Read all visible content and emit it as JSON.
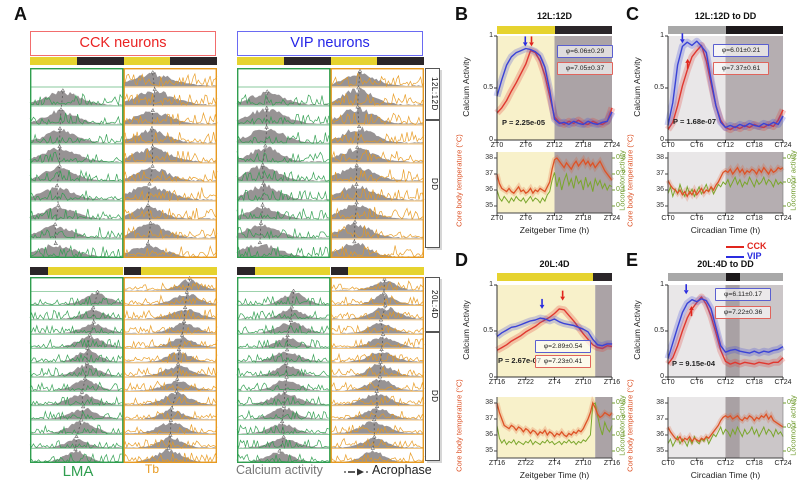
{
  "figure": {
    "panel_a": {
      "label": "A",
      "headers": {
        "cck": "CCK neurons",
        "vip": "VIP neurons"
      },
      "side_labels": {
        "top1": "12L:12D",
        "top2": "DD",
        "bottom1": "20L:4D",
        "bottom2": "DD"
      },
      "footer": {
        "lma": "LMA",
        "tb": "Tb",
        "calcium": "Calcium activity",
        "acrophase": "Acrophase"
      },
      "light_bars": {
        "top": [
          {
            "f": 0,
            "t": 0.25,
            "c": "#e6d32f"
          },
          {
            "f": 0.25,
            "t": 0.5,
            "c": "#2b2629"
          },
          {
            "f": 0.5,
            "t": 0.75,
            "c": "#e6d32f"
          },
          {
            "f": 0.75,
            "t": 1,
            "c": "#2b2629"
          }
        ],
        "bottom": [
          {
            "f": 0,
            "t": 0.096,
            "c": "#2b2629"
          },
          {
            "f": 0.096,
            "t": 0.5,
            "c": "#e6d32f"
          },
          {
            "f": 0.5,
            "t": 0.596,
            "c": "#2b2629"
          },
          {
            "f": 0.596,
            "t": 1,
            "c": "#e6d32f"
          }
        ]
      },
      "actograms": [
        {
          "name": "cck-12L12D-DD",
          "rows": 10,
          "peak_start": 0.34,
          "peak_end": 0.27,
          "sigma": 0.17,
          "seed": 7
        },
        {
          "name": "vip-12L12D-DD",
          "rows": 10,
          "peak_start": 0.32,
          "peak_end": 0.26,
          "sigma": 0.17,
          "seed": 13
        },
        {
          "name": "cck-20L4D-DD",
          "rows": 13,
          "peak_start": 0.73,
          "peak_end": 0.49,
          "sigma": 0.12,
          "seed": 21
        },
        {
          "name": "vip-20L4D-DD",
          "rows": 13,
          "peak_start": 0.6,
          "peak_end": 0.47,
          "sigma": 0.12,
          "seed": 29
        }
      ],
      "colors": {
        "green": "#2f9e4f",
        "orange": "#e89a20",
        "mound_gray": "#918d8e",
        "cck_red": "#ea2323",
        "vip_blue": "#2626e8"
      }
    },
    "legend": {
      "cck": "CCK",
      "vip": "VIP",
      "cck_color": "#e0251d",
      "vip_color": "#2a2cdf"
    }
  },
  "chart_data": [
    {
      "panel": "B",
      "type": "line",
      "title": "12L:12D",
      "xticks": [
        "ZT0",
        "ZT6",
        "ZT12",
        "ZT18",
        "ZT24"
      ],
      "xlabel": "Zeitgeber Time (h)",
      "calcium": {
        "ylabel": "Calcium Activity",
        "yticks": [
          {
            "v": 0,
            "label": "0"
          },
          {
            "v": 0.5,
            "label": "0.5"
          },
          {
            "v": 1,
            "label": "1"
          }
        ],
        "p_value": "P = 2.25e-05",
        "phi_vip": "φ=6.06±0.29",
        "phi_cck": "φ=7.05±0.37",
        "vip": [
          0.42,
          0.58,
          0.72,
          0.8,
          0.84,
          0.86,
          0.88,
          0.87,
          0.85,
          0.81,
          0.7,
          0.48,
          0.2,
          0.16,
          0.17,
          0.15,
          0.18,
          0.16,
          0.15,
          0.18,
          0.16,
          0.15,
          0.17,
          0.18,
          0.27
        ],
        "cck": [
          0.26,
          0.31,
          0.38,
          0.47,
          0.55,
          0.64,
          0.73,
          0.86,
          0.84,
          0.76,
          0.62,
          0.42,
          0.22,
          0.17,
          0.15,
          0.18,
          0.16,
          0.19,
          0.16,
          0.15,
          0.18,
          0.16,
          0.15,
          0.18,
          0.31
        ],
        "arrows": [
          {
            "series": "vip",
            "t": 5.9,
            "v": 0.9,
            "dir": "down"
          },
          {
            "series": "cck",
            "t": 7.2,
            "v": 0.9,
            "dir": "down"
          }
        ]
      },
      "physio": {
        "ylabel_left": "Core body temperature (°C)",
        "ylabel_right": "Locomotor activity",
        "yticks_left": [
          "35",
          "36",
          "37",
          "38"
        ],
        "yticks_right": [
          "0",
          "0.1",
          "0.2",
          "0.3"
        ],
        "loco_max": 0.3,
        "temp": [
          37.0,
          36.4,
          36.1,
          36.0,
          35.9,
          36.1,
          35.9,
          35.8,
          36.0,
          36.2,
          35.9,
          36.0,
          35.8,
          35.9,
          36.1,
          35.8,
          36.0,
          35.9,
          36.1,
          36.0,
          35.9,
          36.2,
          36.5,
          37.3,
          37.9,
          38.0,
          37.8,
          37.6,
          37.4,
          37.7,
          37.5,
          37.3,
          37.6,
          37.8,
          37.5,
          37.7,
          37.9,
          37.6,
          37.8,
          37.5,
          37.7,
          37.4,
          37.6,
          37.8,
          37.5,
          37.2,
          37.0,
          36.8,
          36.6
        ],
        "loco": [
          0.1,
          0.05,
          0.03,
          0.06,
          0.04,
          0.02,
          0.05,
          0.03,
          0.06,
          0.04,
          0.03,
          0.05,
          0.02,
          0.04,
          0.06,
          0.03,
          0.05,
          0.04,
          0.02,
          0.05,
          0.03,
          0.07,
          0.09,
          0.16,
          0.21,
          0.12,
          0.18,
          0.1,
          0.16,
          0.2,
          0.13,
          0.17,
          0.11,
          0.19,
          0.14,
          0.16,
          0.1,
          0.18,
          0.12,
          0.15,
          0.09,
          0.17,
          0.13,
          0.16,
          0.11,
          0.14,
          0.1,
          0.13,
          0.12
        ]
      },
      "light_bar": [
        {
          "f": 0,
          "t": 0.5,
          "c": "#e6d32f"
        },
        {
          "f": 0.5,
          "t": 1,
          "c": "#2b2629"
        }
      ],
      "bg": [
        {
          "f": 0,
          "t": 0.5,
          "c": "#f8f1ca"
        },
        {
          "f": 0.5,
          "t": 1,
          "c": "#aba3a6"
        }
      ]
    },
    {
      "panel": "C",
      "type": "line",
      "title": "12L:12D to DD",
      "xticks": [
        "CT0",
        "CT6",
        "CT12",
        "CT18",
        "CT24"
      ],
      "xlabel": "Circadian Time (h)",
      "calcium": {
        "ylabel": "Calcium Activity",
        "yticks": [
          {
            "v": 0,
            "label": "0"
          },
          {
            "v": 0.5,
            "label": "0.5"
          },
          {
            "v": 1,
            "label": "1"
          }
        ],
        "p_value": "P = 1.68e-07",
        "phi_vip": "φ=6.01±0.21",
        "phi_cck": "φ=7.37±0.61",
        "vip": [
          0.14,
          0.36,
          0.72,
          0.9,
          0.94,
          0.91,
          0.95,
          0.9,
          0.84,
          0.58,
          0.33,
          0.17,
          0.12,
          0.14,
          0.12,
          0.15,
          0.13,
          0.16,
          0.14,
          0.13,
          0.16,
          0.14,
          0.17,
          0.15,
          0.23
        ],
        "cck": [
          0.1,
          0.17,
          0.33,
          0.52,
          0.67,
          0.8,
          0.86,
          0.91,
          0.76,
          0.54,
          0.33,
          0.19,
          0.12,
          0.1,
          0.13,
          0.11,
          0.14,
          0.12,
          0.15,
          0.13,
          0.12,
          0.15,
          0.13,
          0.19,
          0.29
        ],
        "arrows": [
          {
            "series": "vip",
            "t": 3.0,
            "v": 0.93,
            "dir": "down"
          },
          {
            "series": "cck",
            "t": 4.1,
            "v": 0.78,
            "dir": "up"
          }
        ]
      },
      "physio": {
        "ylabel_left": "Core body temperature (°C)",
        "ylabel_right": "Locomotor activity",
        "yticks_left": [
          "35",
          "36",
          "37",
          "38"
        ],
        "yticks_right": [
          "0",
          "0.1",
          "0.2"
        ],
        "loco_max": 0.2,
        "temp": [
          36.6,
          36.3,
          36.1,
          36.0,
          35.8,
          36.0,
          35.7,
          35.9,
          35.6,
          35.9,
          35.7,
          36.0,
          35.7,
          35.9,
          36.1,
          35.8,
          36.0,
          35.9,
          36.2,
          36.0,
          36.3,
          36.5,
          36.8,
          37.1,
          37.2,
          37.1,
          37.3,
          37.0,
          37.2,
          37.4,
          37.1,
          37.3,
          37.0,
          37.2,
          37.1,
          37.3,
          37.2,
          37.0,
          37.3,
          37.1,
          37.4,
          37.2,
          37.0,
          37.3,
          37.1,
          37.2,
          37.4,
          37.3,
          37.4
        ],
        "loco": [
          0.05,
          0.08,
          0.04,
          0.07,
          0.05,
          0.09,
          0.06,
          0.04,
          0.08,
          0.05,
          0.07,
          0.04,
          0.06,
          0.08,
          0.05,
          0.07,
          0.09,
          0.06,
          0.08,
          0.05,
          0.07,
          0.09,
          0.08,
          0.1,
          0.09,
          0.11,
          0.08,
          0.1,
          0.12,
          0.09,
          0.11,
          0.08,
          0.1,
          0.09,
          0.12,
          0.1,
          0.08,
          0.11,
          0.09,
          0.1,
          0.12,
          0.09,
          0.11,
          0.1,
          0.08,
          0.11,
          0.09,
          0.1,
          0.09
        ]
      },
      "light_bar": [
        {
          "f": 0,
          "t": 0.5,
          "c": "#a8a8a8"
        },
        {
          "f": 0.5,
          "t": 1,
          "c": "#1d191b"
        }
      ],
      "bg": [
        {
          "f": 0,
          "t": 0.5,
          "c": "#e9e7e8"
        },
        {
          "f": 0.5,
          "t": 1,
          "c": "#b5aeb1"
        }
      ]
    },
    {
      "panel": "D",
      "type": "line",
      "title": "20L:4D",
      "xticks": [
        "ZT16",
        "ZT22",
        "ZT4",
        "ZT10",
        "ZT16"
      ],
      "xlabel": "Zeitgeber Time (h)",
      "calcium": {
        "ylabel": "Calcium Activity",
        "yticks": [
          {
            "v": 0,
            "label": "0"
          },
          {
            "v": 0.5,
            "label": "0.5"
          },
          {
            "v": 1,
            "label": "1"
          }
        ],
        "p_value": "P = 2.67e-07",
        "phi_vip": "φ=2.89±0.54",
        "phi_cck": "φ=7.23±0.41",
        "vip": [
          0.44,
          0.48,
          0.51,
          0.54,
          0.55,
          0.57,
          0.59,
          0.61,
          0.62,
          0.64,
          0.63,
          0.61,
          0.63,
          0.6,
          0.58,
          0.57,
          0.56,
          0.54,
          0.52,
          0.49,
          0.41,
          0.35,
          0.34,
          0.36,
          0.36
        ],
        "cck": [
          0.29,
          0.32,
          0.35,
          0.39,
          0.42,
          0.45,
          0.49,
          0.52,
          0.55,
          0.59,
          0.62,
          0.65,
          0.69,
          0.74,
          0.73,
          0.67,
          0.61,
          0.54,
          0.47,
          0.41,
          0.35,
          0.32,
          0.31,
          0.34,
          0.33
        ],
        "arrows": [
          {
            "series": "vip",
            "t": 9.4,
            "v": 0.74,
            "dir": "down"
          },
          {
            "series": "cck",
            "t": 13.7,
            "v": 0.83,
            "dir": "down"
          }
        ]
      },
      "physio": {
        "ylabel_left": "Core body temperature (°C)",
        "ylabel_right": "Locomotor activity",
        "yticks_left": [
          "35",
          "36",
          "37",
          "38"
        ],
        "yticks_right": [
          "0",
          "0.1",
          "0.2",
          "0.3"
        ],
        "loco_max": 0.3,
        "temp": [
          38.0,
          37.4,
          37.0,
          36.6,
          36.5,
          36.4,
          36.6,
          36.5,
          36.3,
          36.5,
          36.4,
          36.2,
          36.4,
          36.3,
          36.1,
          36.3,
          36.2,
          36.0,
          36.2,
          36.1,
          36.3,
          36.0,
          36.2,
          36.1,
          35.9,
          36.1,
          36.0,
          36.2,
          36.0,
          35.9,
          36.1,
          36.0,
          36.2,
          36.1,
          36.3,
          36.2,
          36.4,
          36.7,
          37.0,
          37.4,
          38.0,
          37.7,
          37.3,
          37.1,
          37.2,
          37.4,
          37.3,
          37.2,
          37.4
        ],
        "loco": [
          0.16,
          0.08,
          0.05,
          0.07,
          0.04,
          0.06,
          0.05,
          0.07,
          0.04,
          0.06,
          0.05,
          0.04,
          0.06,
          0.05,
          0.07,
          0.04,
          0.06,
          0.05,
          0.04,
          0.06,
          0.05,
          0.07,
          0.05,
          0.06,
          0.04,
          0.05,
          0.06,
          0.04,
          0.06,
          0.05,
          0.07,
          0.05,
          0.06,
          0.04,
          0.06,
          0.05,
          0.07,
          0.06,
          0.08,
          0.1,
          0.29,
          0.3,
          0.22,
          0.15,
          0.1,
          0.18,
          0.14,
          0.12,
          0.16
        ]
      },
      "light_bar": [
        {
          "f": 0,
          "t": 0.833,
          "c": "#e6d32f"
        },
        {
          "f": 0.833,
          "t": 1,
          "c": "#2b2629"
        }
      ],
      "bg": [
        {
          "f": 0,
          "t": 0.854,
          "c": "#f8f1ca"
        },
        {
          "f": 0.854,
          "t": 1,
          "c": "#aba3a6"
        }
      ]
    },
    {
      "panel": "E",
      "type": "line",
      "title": "20L:4D to DD",
      "xticks": [
        "CT0",
        "CT6",
        "CT12",
        "CT18",
        "CT24"
      ],
      "xlabel": "Circadian Time (h)",
      "calcium": {
        "ylabel": "Calcium Activity",
        "yticks": [
          {
            "v": 0,
            "label": "0"
          },
          {
            "v": 0.5,
            "label": "0.5"
          },
          {
            "v": 1,
            "label": "1"
          }
        ],
        "p_value": "P = 9.15e-04",
        "phi_vip": "φ=6.11±0.17",
        "phi_cck": "φ=7.22±0.36",
        "vip": [
          0.2,
          0.37,
          0.54,
          0.7,
          0.8,
          0.84,
          0.82,
          0.85,
          0.83,
          0.74,
          0.54,
          0.34,
          0.27,
          0.29,
          0.3,
          0.28,
          0.27,
          0.26,
          0.28,
          0.26,
          0.28,
          0.27,
          0.29,
          0.3,
          0.33
        ],
        "cck": [
          0.14,
          0.21,
          0.34,
          0.5,
          0.64,
          0.74,
          0.81,
          0.87,
          0.79,
          0.66,
          0.48,
          0.29,
          0.17,
          0.14,
          0.16,
          0.14,
          0.16,
          0.15,
          0.14,
          0.16,
          0.15,
          0.14,
          0.16,
          0.16,
          0.21
        ],
        "arrows": [
          {
            "series": "vip",
            "t": 3.8,
            "v": 0.9,
            "dir": "down"
          },
          {
            "series": "cck",
            "t": 4.9,
            "v": 0.77,
            "dir": "up"
          }
        ]
      },
      "physio": {
        "ylabel_left": "Core body temperature (°C)",
        "ylabel_right": "Locomotor activity",
        "yticks_left": [
          "35",
          "36",
          "37",
          "38"
        ],
        "yticks_right": [
          "0",
          "0.1",
          "0.2"
        ],
        "loco_max": 0.2,
        "temp": [
          36.5,
          36.2,
          36.0,
          35.8,
          35.7,
          35.9,
          35.6,
          35.8,
          35.7,
          35.9,
          35.6,
          35.8,
          35.7,
          35.6,
          35.8,
          35.7,
          35.9,
          35.8,
          36.0,
          36.2,
          36.4,
          36.6,
          36.9,
          37.1,
          37.2,
          37.1,
          37.2,
          37.0,
          37.1,
          37.2,
          37.0,
          36.9,
          37.1,
          37.0,
          37.2,
          37.1,
          36.9,
          37.1,
          37.0,
          37.2,
          37.1,
          37.3,
          37.0,
          37.2,
          36.9,
          36.8,
          36.7,
          36.6,
          36.5
        ],
        "loco": [
          0.03,
          0.05,
          0.02,
          0.04,
          0.06,
          0.03,
          0.05,
          0.04,
          0.02,
          0.05,
          0.03,
          0.06,
          0.04,
          0.03,
          0.05,
          0.04,
          0.06,
          0.03,
          0.05,
          0.07,
          0.06,
          0.08,
          0.1,
          0.07,
          0.09,
          0.08,
          0.06,
          0.09,
          0.07,
          0.1,
          0.08,
          0.06,
          0.09,
          0.07,
          0.08,
          0.1,
          0.07,
          0.09,
          0.06,
          0.08,
          0.1,
          0.07,
          0.09,
          0.08,
          0.06,
          0.09,
          0.07,
          0.08,
          0.06
        ]
      },
      "light_bar": [
        {
          "f": 0,
          "t": 0.5,
          "c": "#a8a8a8"
        },
        {
          "f": 0.5,
          "t": 0.625,
          "c": "#1d191b"
        },
        {
          "f": 0.625,
          "t": 1,
          "c": "#a8a8a8"
        }
      ],
      "bg": [
        {
          "f": 0,
          "t": 0.5,
          "c": "#e9e7e8"
        },
        {
          "f": 0.5,
          "t": 0.625,
          "c": "#a9a1a4"
        },
        {
          "f": 0.625,
          "t": 1,
          "c": "#cbc6c8"
        }
      ]
    }
  ]
}
